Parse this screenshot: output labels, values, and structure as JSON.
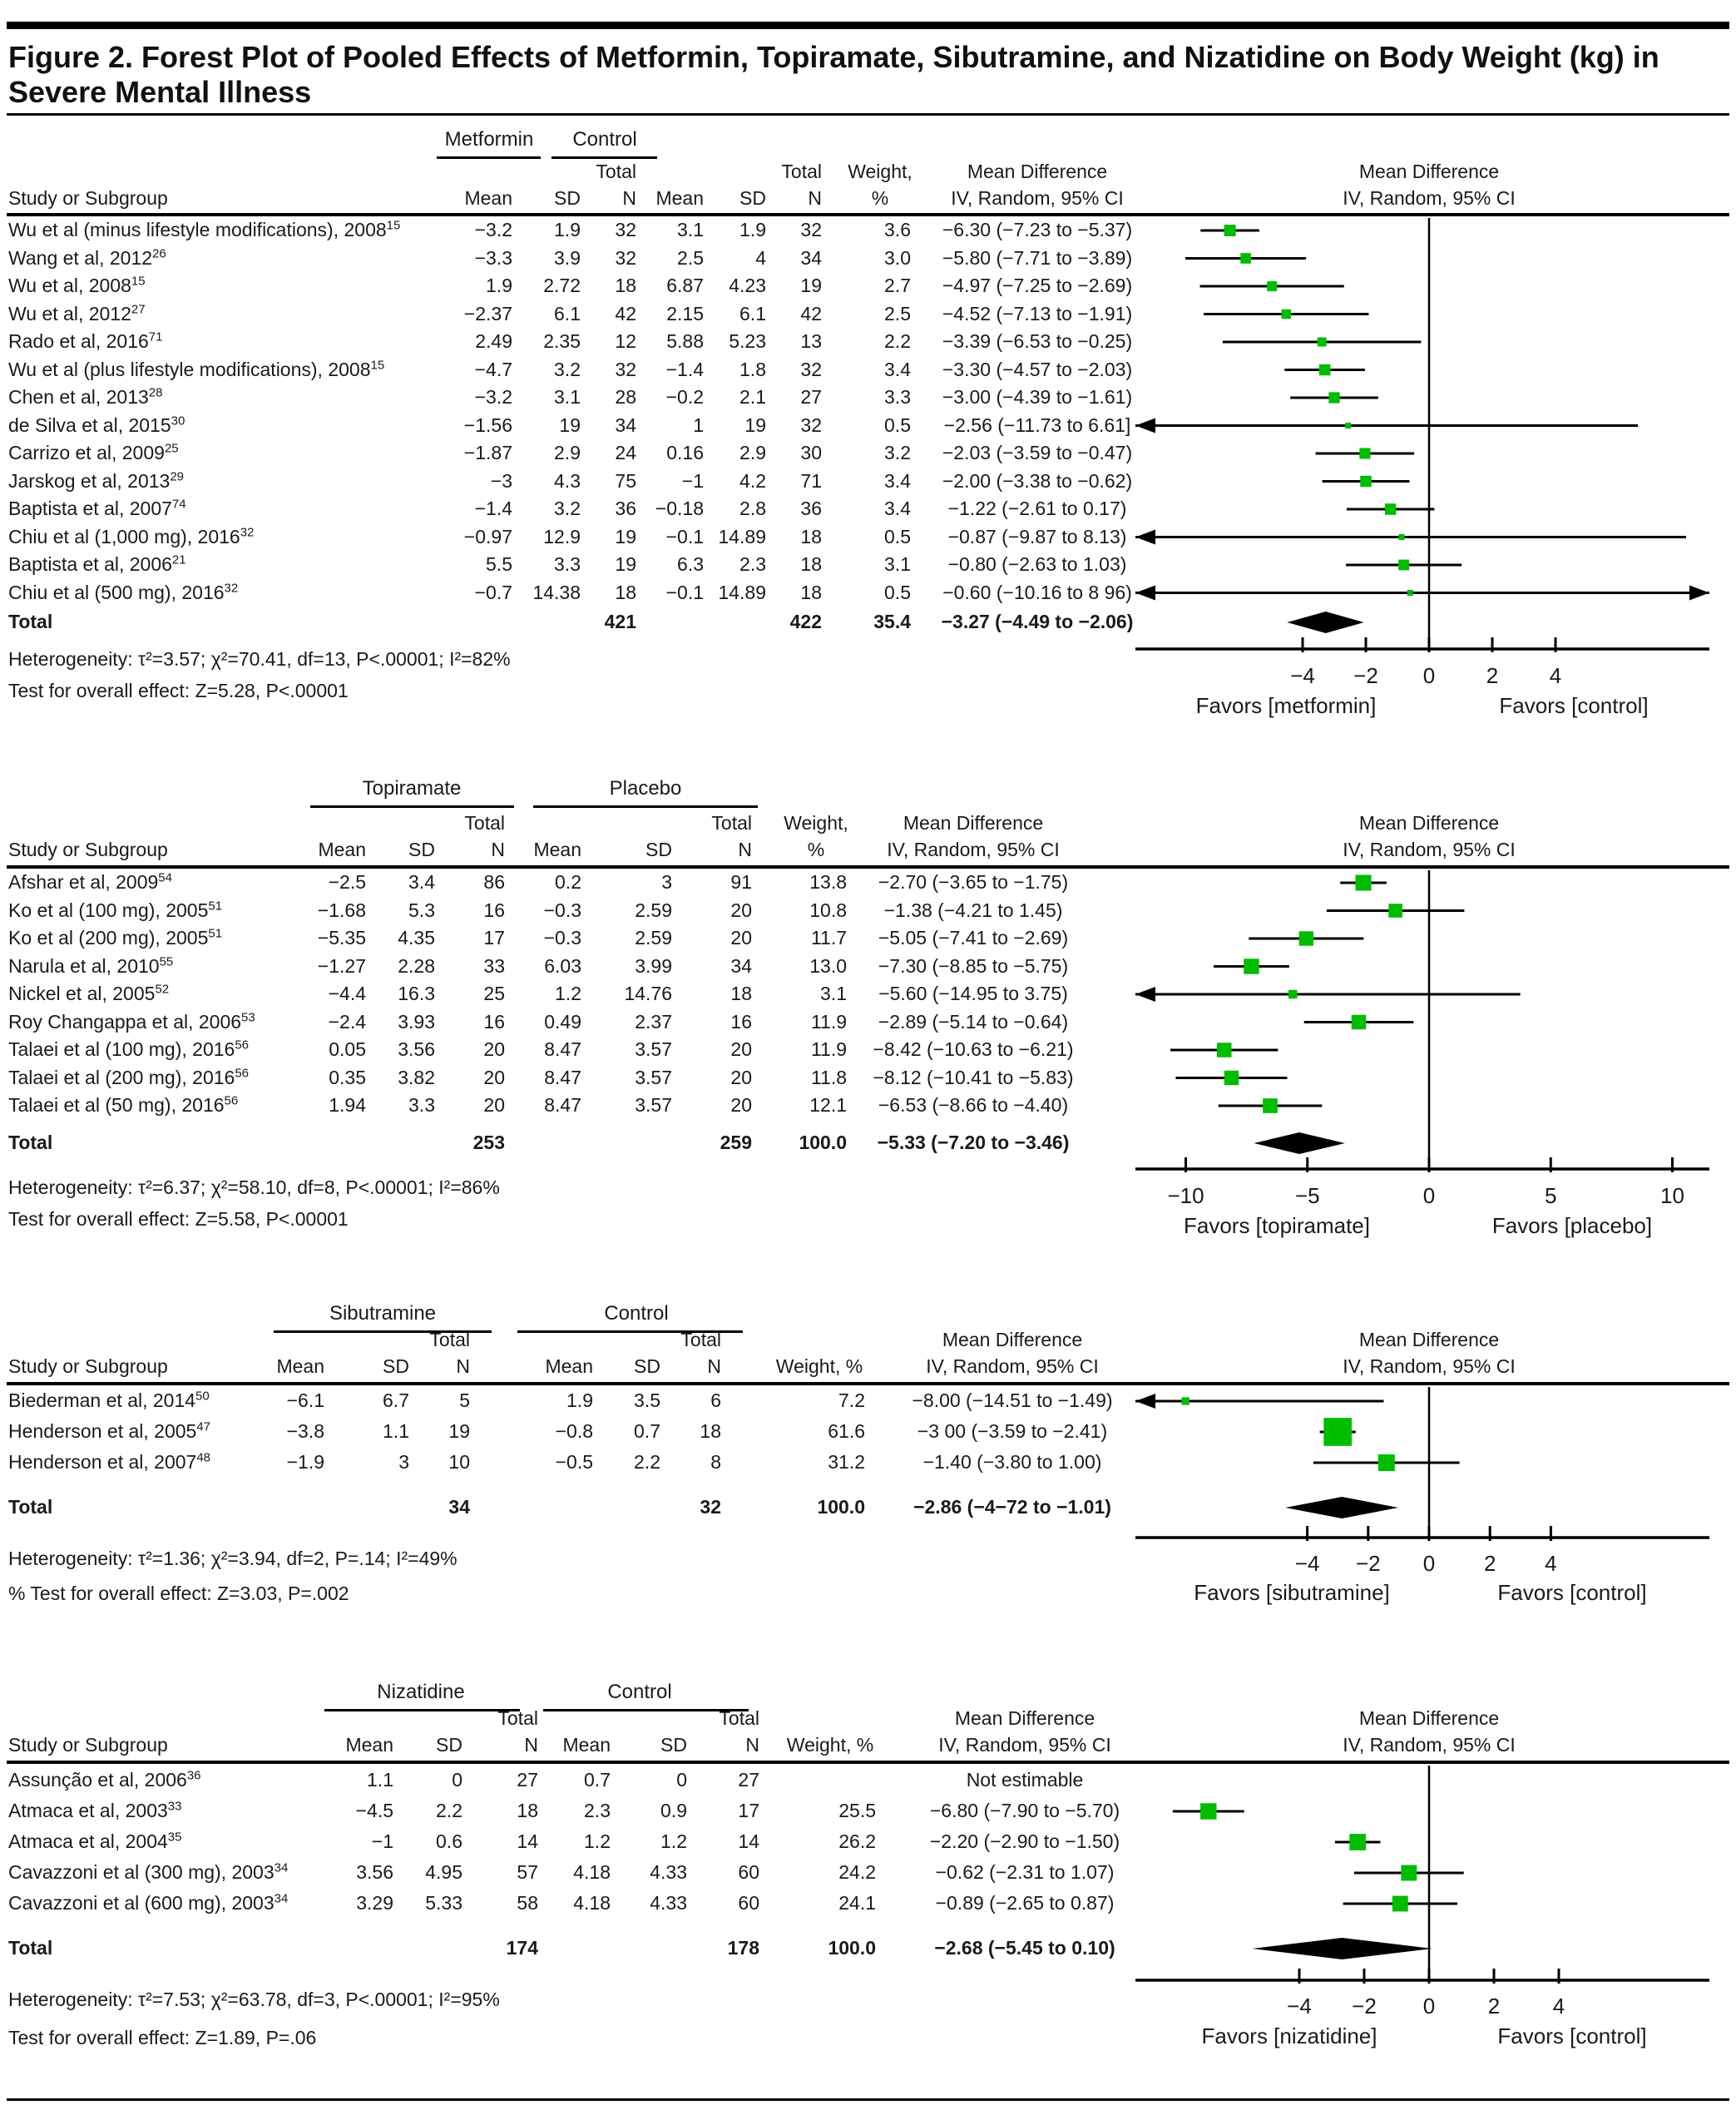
{
  "figure_title_line1": "Figure 2. Forest Plot of Pooled Effects of Metformin, Topiramate, Sibutramine, and Nizatidine on Body Weight (kg) in",
  "figure_title_line2": "Severe Mental Illness",
  "headers": {
    "study": "Study or Subgroup",
    "mean": "Mean",
    "sd": "SD",
    "total": "Total",
    "n": "N",
    "weight_line1": "Weight,",
    "weight_line2": "%",
    "weight_single": "Weight, %",
    "md1": "Mean Difference",
    "md2": "IV, Random, 95% CI"
  },
  "chart_data": [
    {
      "type": "forest",
      "treatment": "Metformin",
      "comparator": "Control",
      "studies": [
        {
          "name": "Wu et al (minus lifestyle modifications), 2008",
          "sup": "15",
          "mean1": "−3.2",
          "sd1": "1.9",
          "n1": "32",
          "mean2": "3.1",
          "sd2": "1.9",
          "n2": "32",
          "weight": "3.6",
          "md": "−6.30 (−7.23 to −5.37)",
          "est": -6.3,
          "lo": -7.23,
          "hi": -5.37,
          "w": 3.6
        },
        {
          "name": "Wang et al, 2012",
          "sup": "26",
          "mean1": "−3.3",
          "sd1": "3.9",
          "n1": "32",
          "mean2": "2.5",
          "sd2": "4",
          "n2": "34",
          "weight": "3.0",
          "md": "−5.80 (−7.71 to −3.89)",
          "est": -5.8,
          "lo": -7.71,
          "hi": -3.89,
          "w": 3.0
        },
        {
          "name": "Wu et al, 2008",
          "sup": "15",
          "mean1": "1.9",
          "sd1": "2.72",
          "n1": "18",
          "mean2": "6.87",
          "sd2": "4.23",
          "n2": "19",
          "weight": "2.7",
          "md": "−4.97 (−7.25 to −2.69)",
          "est": -4.97,
          "lo": -7.25,
          "hi": -2.69,
          "w": 2.7
        },
        {
          "name": "Wu et al, 2012",
          "sup": "27",
          "mean1": "−2.37",
          "sd1": "6.1",
          "n1": "42",
          "mean2": "2.15",
          "sd2": "6.1",
          "n2": "42",
          "weight": "2.5",
          "md": "−4.52 (−7.13 to −1.91)",
          "est": -4.52,
          "lo": -7.13,
          "hi": -1.91,
          "w": 2.5
        },
        {
          "name": "Rado et al, 2016",
          "sup": "71",
          "mean1": "2.49",
          "sd1": "2.35",
          "n1": "12",
          "mean2": "5.88",
          "sd2": "5.23",
          "n2": "13",
          "weight": "2.2",
          "md": "−3.39 (−6.53 to −0.25)",
          "est": -3.39,
          "lo": -6.53,
          "hi": -0.25,
          "w": 2.2
        },
        {
          "name": "Wu et al (plus lifestyle modifications), 2008",
          "sup": "15",
          "mean1": "−4.7",
          "sd1": "3.2",
          "n1": "32",
          "mean2": "−1.4",
          "sd2": "1.8",
          "n2": "32",
          "weight": "3.4",
          "md": "−3.30 (−4.57 to −2.03)",
          "est": -3.3,
          "lo": -4.57,
          "hi": -2.03,
          "w": 3.4
        },
        {
          "name": "Chen et al, 2013",
          "sup": "28",
          "mean1": "−3.2",
          "sd1": "3.1",
          "n1": "28",
          "mean2": "−0.2",
          "sd2": "2.1",
          "n2": "27",
          "weight": "3.3",
          "md": "−3.00 (−4.39 to −1.61)",
          "est": -3.0,
          "lo": -4.39,
          "hi": -1.61,
          "w": 3.3
        },
        {
          "name": "de Silva et al, 2015",
          "sup": "30",
          "mean1": "−1.56",
          "sd1": "19",
          "n1": "34",
          "mean2": "1",
          "sd2": "19",
          "n2": "32",
          "weight": "0.5",
          "md": "−2.56 (−11.73 to 6.61]",
          "est": -2.56,
          "lo": -11.73,
          "hi": 6.61,
          "w": 0.5
        },
        {
          "name": "Carrizo et al, 2009",
          "sup": "25",
          "mean1": "−1.87",
          "sd1": "2.9",
          "n1": "24",
          "mean2": "0.16",
          "sd2": "2.9",
          "n2": "30",
          "weight": "3.2",
          "md": "−2.03 (−3.59 to −0.47)",
          "est": -2.03,
          "lo": -3.59,
          "hi": -0.47,
          "w": 3.2
        },
        {
          "name": "Jarskog et al, 2013",
          "sup": "29",
          "mean1": "−3",
          "sd1": "4.3",
          "n1": "75",
          "mean2": "−1",
          "sd2": "4.2",
          "n2": "71",
          "weight": "3.4",
          "md": "−2.00 (−3.38 to −0.62)",
          "est": -2.0,
          "lo": -3.38,
          "hi": -0.62,
          "w": 3.4
        },
        {
          "name": "Baptista et al, 2007",
          "sup": "74",
          "mean1": "−1.4",
          "sd1": "3.2",
          "n1": "36",
          "mean2": "−0.18",
          "sd2": "2.8",
          "n2": "36",
          "weight": "3.4",
          "md": "−1.22 (−2.61 to 0.17)",
          "est": -1.22,
          "lo": -2.61,
          "hi": 0.17,
          "w": 3.4
        },
        {
          "name": "Chiu et al (1,000 mg), 2016",
          "sup": "32",
          "mean1": "−0.97",
          "sd1": "12.9",
          "n1": "19",
          "mean2": "−0.1",
          "sd2": "14.89",
          "n2": "18",
          "weight": "0.5",
          "md": "−0.87 (−9.87 to 8.13)",
          "est": -0.87,
          "lo": -9.87,
          "hi": 8.13,
          "w": 0.5
        },
        {
          "name": "Baptista et al, 2006",
          "sup": "21",
          "mean1": "5.5",
          "sd1": "3.3",
          "n1": "19",
          "mean2": "6.3",
          "sd2": "2.3",
          "n2": "18",
          "weight": "3.1",
          "md": "−0.80 (−2.63 to 1.03)",
          "est": -0.8,
          "lo": -2.63,
          "hi": 1.03,
          "w": 3.1
        },
        {
          "name": "Chiu et al (500 mg), 2016",
          "sup": "32",
          "mean1": "−0.7",
          "sd1": "14.38",
          "n1": "18",
          "mean2": "−0.1",
          "sd2": "14.89",
          "n2": "18",
          "weight": "0.5",
          "md": "−0.60 (−10.16 to 8 96)",
          "est": -0.6,
          "lo": -10.16,
          "hi": 8.96,
          "w": 0.5
        }
      ],
      "total": {
        "label": "Total",
        "n1": "421",
        "n2": "422",
        "weight": "35.4",
        "md": "−3.27 (−4.49 to −2.06)",
        "est": -3.27,
        "lo": -4.49,
        "hi": -2.06
      },
      "heterogeneity": "Heterogeneity: τ²=3.57; χ²=70.41, df=13, P<.00001; I²=82%",
      "overall_effect": "Test for overall effect: Z=5.28, P<.00001",
      "axis": {
        "tick_values": [
          -4,
          -2,
          0,
          2,
          4
        ],
        "tick_labels": [
          "−4",
          "−2",
          "0",
          "2",
          "4"
        ],
        "favors_left": "Favors [metformin]",
        "favors_right": "Favors [control]"
      }
    },
    {
      "type": "forest",
      "treatment": "Topiramate",
      "comparator": "Placebo",
      "studies": [
        {
          "name": "Afshar et al, 2009",
          "sup": "54",
          "mean1": "−2.5",
          "sd1": "3.4",
          "n1": "86",
          "mean2": "0.2",
          "sd2": "3",
          "n2": "91",
          "weight": "13.8",
          "md": "−2.70 (−3.65 to −1.75)",
          "est": -2.7,
          "lo": -3.65,
          "hi": -1.75,
          "w": 13.8
        },
        {
          "name": "Ko et al (100 mg), 2005",
          "sup": "51",
          "mean1": "−1.68",
          "sd1": "5.3",
          "n1": "16",
          "mean2": "−0.3",
          "sd2": "2.59",
          "n2": "20",
          "weight": "10.8",
          "md": "−1.38 (−4.21 to 1.45)",
          "est": -1.38,
          "lo": -4.21,
          "hi": 1.45,
          "w": 10.8
        },
        {
          "name": "Ko et al (200 mg), 2005",
          "sup": "51",
          "mean1": "−5.35",
          "sd1": "4.35",
          "n1": "17",
          "mean2": "−0.3",
          "sd2": "2.59",
          "n2": "20",
          "weight": "11.7",
          "md": "−5.05 (−7.41 to −2.69)",
          "est": -5.05,
          "lo": -7.41,
          "hi": -2.69,
          "w": 11.7
        },
        {
          "name": "Narula et al, 2010",
          "sup": "55",
          "mean1": "−1.27",
          "sd1": "2.28",
          "n1": "33",
          "mean2": "6.03",
          "sd2": "3.99",
          "n2": "34",
          "weight": "13.0",
          "md": "−7.30 (−8.85 to −5.75)",
          "est": -7.3,
          "lo": -8.85,
          "hi": -5.75,
          "w": 13.0
        },
        {
          "name": "Nickel et al, 2005",
          "sup": "52",
          "mean1": "−4.4",
          "sd1": "16.3",
          "n1": "25",
          "mean2": "1.2",
          "sd2": "14.76",
          "n2": "18",
          "weight": "3.1",
          "md": "−5.60 (−14.95 to 3.75)",
          "est": -5.6,
          "lo": -14.95,
          "hi": 3.75,
          "w": 3.1
        },
        {
          "name": "Roy Changappa et al, 2006",
          "sup": "53",
          "mean1": "−2.4",
          "sd1": "3.93",
          "n1": "16",
          "mean2": "0.49",
          "sd2": "2.37",
          "n2": "16",
          "weight": "11.9",
          "md": "−2.89 (−5.14 to −0.64)",
          "est": -2.89,
          "lo": -5.14,
          "hi": -0.64,
          "w": 11.9
        },
        {
          "name": "Talaei et al (100 mg), 2016",
          "sup": "56",
          "mean1": "0.05",
          "sd1": "3.56",
          "n1": "20",
          "mean2": "8.47",
          "sd2": "3.57",
          "n2": "20",
          "weight": "11.9",
          "md": "−8.42 (−10.63 to −6.21)",
          "est": -8.42,
          "lo": -10.63,
          "hi": -6.21,
          "w": 11.9
        },
        {
          "name": "Talaei et al (200 mg), 2016",
          "sup": "56",
          "mean1": "0.35",
          "sd1": "3.82",
          "n1": "20",
          "mean2": "8.47",
          "sd2": "3.57",
          "n2": "20",
          "weight": "11.8",
          "md": "−8.12 (−10.41 to −5.83)",
          "est": -8.12,
          "lo": -10.41,
          "hi": -5.83,
          "w": 11.8
        },
        {
          "name": "Talaei et al (50 mg), 2016",
          "sup": "56",
          "mean1": "1.94",
          "sd1": "3.3",
          "n1": "20",
          "mean2": "8.47",
          "sd2": "3.57",
          "n2": "20",
          "weight": "12.1",
          "md": "−6.53 (−8.66 to −4.40)",
          "est": -6.53,
          "lo": -8.66,
          "hi": -4.4,
          "w": 12.1
        }
      ],
      "total": {
        "label": "Total",
        "n1": "253",
        "n2": "259",
        "weight": "100.0",
        "md": "−5.33 (−7.20 to −3.46)",
        "est": -5.33,
        "lo": -7.2,
        "hi": -3.46
      },
      "heterogeneity": "Heterogeneity: τ²=6.37; χ²=58.10, df=8, P<.00001; I²=86%",
      "overall_effect": "Test for overall effect: Z=5.58, P<.00001",
      "axis": {
        "tick_values": [
          -10,
          -5,
          0,
          5,
          10
        ],
        "tick_labels": [
          "−10",
          "−5",
          "0",
          "5",
          "10"
        ],
        "favors_left": "Favors [topiramate]",
        "favors_right": "Favors [placebo]"
      }
    },
    {
      "type": "forest",
      "treatment": "Sibutramine",
      "comparator": "Control",
      "studies": [
        {
          "name": "Biederman et al, 2014",
          "sup": "50",
          "mean1": "−6.1",
          "sd1": "6.7",
          "n1": "5",
          "mean2": "1.9",
          "sd2": "3.5",
          "n2": "6",
          "weight": "7.2",
          "md": "−8.00 (−14.51 to −1.49)",
          "est": -8.0,
          "lo": -14.51,
          "hi": -1.49,
          "w": 7.2
        },
        {
          "name": "Henderson et al, 2005",
          "sup": "47",
          "mean1": "−3.8",
          "sd1": "1.1",
          "n1": "19",
          "mean2": "−0.8",
          "sd2": "0.7",
          "n2": "18",
          "weight": "61.6",
          "md": "−3 00 (−3.59 to −2.41)",
          "est": -3.0,
          "lo": -3.59,
          "hi": -2.41,
          "w": 61.6
        },
        {
          "name": "Henderson et al, 2007",
          "sup": "48",
          "mean1": "−1.9",
          "sd1": "3",
          "n1": "10",
          "mean2": "−0.5",
          "sd2": "2.2",
          "n2": "8",
          "weight": "31.2",
          "md": "−1.40 (−3.80 to 1.00)",
          "est": -1.4,
          "lo": -3.8,
          "hi": 1.0,
          "w": 31.2
        }
      ],
      "total": {
        "label": "Total",
        "n1": "34",
        "n2": "32",
        "weight": "100.0",
        "md": "−2.86 (−4−72 to −1.01)",
        "est": -2.86,
        "lo": -4.72,
        "hi": -1.01
      },
      "heterogeneity": "Heterogeneity: τ²=1.36; χ²=3.94, df=2, P=.14; I²=49%",
      "overall_effect": "% Test for overall effect: Z=3.03, P=.002",
      "axis": {
        "tick_values": [
          -4,
          -2,
          0,
          2,
          4
        ],
        "tick_labels": [
          "−4",
          "−2",
          "0",
          "2",
          "4"
        ],
        "favors_left": "Favors [sibutramine]",
        "favors_right": "Favors [control]"
      }
    },
    {
      "type": "forest",
      "treatment": "Nizatidine",
      "comparator": "Control",
      "studies": [
        {
          "name": "Assunção et al, 2006",
          "sup": "36",
          "mean1": "1.1",
          "sd1": "0",
          "n1": "27",
          "mean2": "0.7",
          "sd2": "0",
          "n2": "27",
          "weight": "",
          "md": "Not estimable",
          "est": null,
          "lo": null,
          "hi": null,
          "w": 0
        },
        {
          "name": "Atmaca et al, 2003",
          "sup": "33",
          "mean1": "−4.5",
          "sd1": "2.2",
          "n1": "18",
          "mean2": "2.3",
          "sd2": "0.9",
          "n2": "17",
          "weight": "25.5",
          "md": "−6.80 (−7.90 to −5.70)",
          "est": -6.8,
          "lo": -7.9,
          "hi": -5.7,
          "w": 25.5
        },
        {
          "name": "Atmaca et al, 2004",
          "sup": "35",
          "mean1": "−1",
          "sd1": "0.6",
          "n1": "14",
          "mean2": "1.2",
          "sd2": "1.2",
          "n2": "14",
          "weight": "26.2",
          "md": "−2.20 (−2.90 to −1.50)",
          "est": -2.2,
          "lo": -2.9,
          "hi": -1.5,
          "w": 26.2
        },
        {
          "name": "Cavazzoni et al (300 mg), 2003",
          "sup": "34",
          "mean1": "3.56",
          "sd1": "4.95",
          "n1": "57",
          "mean2": "4.18",
          "sd2": "4.33",
          "n2": "60",
          "weight": "24.2",
          "md": "−0.62 (−2.31 to 1.07)",
          "est": -0.62,
          "lo": -2.31,
          "hi": 1.07,
          "w": 24.2
        },
        {
          "name": "Cavazzoni et al (600 mg), 2003",
          "sup": "34",
          "mean1": "3.29",
          "sd1": "5.33",
          "n1": "58",
          "mean2": "4.18",
          "sd2": "4.33",
          "n2": "60",
          "weight": "24.1",
          "md": "−0.89 (−2.65 to 0.87)",
          "est": -0.89,
          "lo": -2.65,
          "hi": 0.87,
          "w": 24.1
        }
      ],
      "total": {
        "label": "Total",
        "n1": "174",
        "n2": "178",
        "weight": "100.0",
        "md": "−2.68 (−5.45 to 0.10)",
        "est": -2.68,
        "lo": -5.45,
        "hi": 0.1
      },
      "heterogeneity": "Heterogeneity: τ²=7.53; χ²=63.78, df=3, P<.00001; I²=95%",
      "overall_effect": "Test for overall effect: Z=1.89, P=.06",
      "axis": {
        "tick_values": [
          -4,
          -2,
          0,
          2,
          4
        ],
        "tick_labels": [
          "−4",
          "−2",
          "0",
          "2",
          "4"
        ],
        "favors_left": "Favors [nizatidine]",
        "favors_right": "Favors [control]"
      }
    }
  ],
  "colors": {
    "marker_green": "#00bd00",
    "diamond_black": "#000000"
  }
}
